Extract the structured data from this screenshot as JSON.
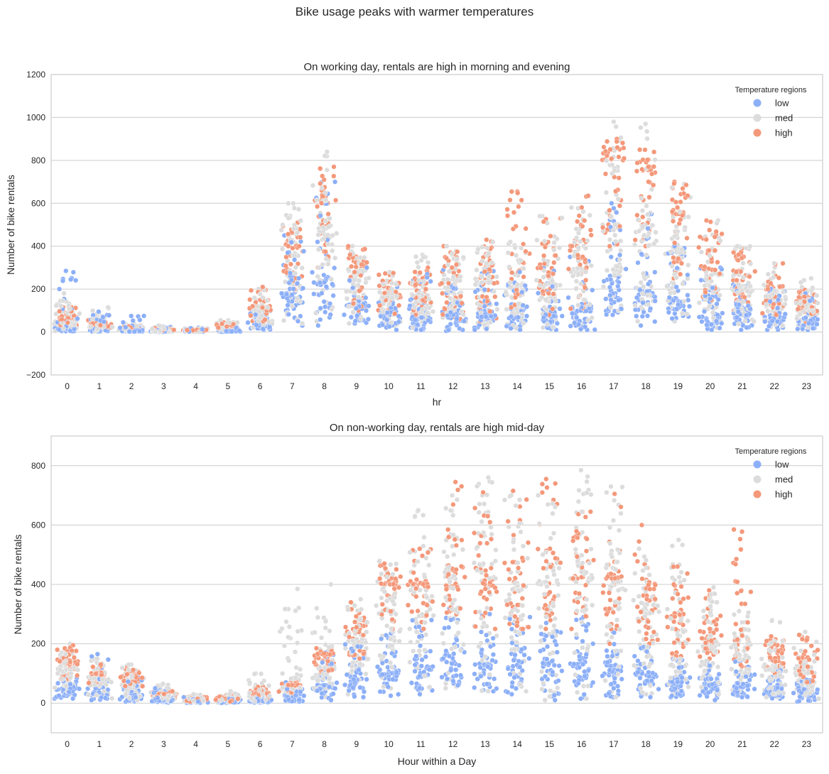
{
  "figure": {
    "title": "Bike usage peaks with warmer temperatures"
  },
  "colors": {
    "low": "#8caff8",
    "med": "#dcdcdc",
    "high": "#f4987a",
    "grid": "#cccccc",
    "frame": "#cccccc"
  },
  "chart_data": [
    {
      "type": "scatter",
      "subtype": "swarm",
      "title": "On working day, rentals are high in morning and evening",
      "xlabel": "hr",
      "ylabel": "Number of bike rentals",
      "ylim": [
        -200,
        1200
      ],
      "yticks": [
        -200,
        0,
        200,
        400,
        600,
        800,
        1000,
        1200
      ],
      "categories": [
        "0",
        "1",
        "2",
        "3",
        "4",
        "5",
        "6",
        "7",
        "8",
        "9",
        "10",
        "11",
        "12",
        "13",
        "14",
        "15",
        "16",
        "17",
        "18",
        "19",
        "20",
        "21",
        "22",
        "23"
      ],
      "legend": {
        "title": "Temperature regions",
        "entries": [
          "low",
          "med",
          "high"
        ],
        "placement": "top-right"
      },
      "grid": "horizontal",
      "series": [
        {
          "name": "low",
          "min": [
            3,
            2,
            2,
            1,
            1,
            1,
            10,
            30,
            30,
            40,
            10,
            10,
            5,
            10,
            10,
            10,
            10,
            80,
            30,
            50,
            10,
            10,
            10,
            10
          ],
          "median": [
            15,
            8,
            4,
            3,
            3,
            5,
            40,
            180,
            230,
            120,
            80,
            70,
            80,
            80,
            80,
            80,
            110,
            230,
            190,
            140,
            80,
            70,
            60,
            50
          ],
          "max": [
            285,
            95,
            75,
            25,
            20,
            30,
            110,
            450,
            700,
            300,
            220,
            270,
            290,
            290,
            280,
            300,
            350,
            600,
            550,
            400,
            300,
            220,
            200,
            180
          ]
        },
        {
          "name": "med",
          "min": [
            5,
            3,
            2,
            1,
            1,
            2,
            20,
            40,
            50,
            40,
            20,
            20,
            20,
            20,
            10,
            20,
            20,
            100,
            50,
            50,
            20,
            20,
            20,
            20
          ],
          "median": [
            45,
            25,
            12,
            5,
            4,
            15,
            100,
            350,
            450,
            240,
            160,
            170,
            240,
            230,
            210,
            210,
            280,
            500,
            460,
            370,
            260,
            200,
            150,
            100
          ],
          "max": [
            180,
            115,
            40,
            30,
            20,
            55,
            200,
            600,
            840,
            400,
            280,
            360,
            400,
            420,
            420,
            540,
            580,
            980,
            970,
            690,
            520,
            400,
            320,
            250
          ]
        },
        {
          "name": "high",
          "min": [
            30,
            20,
            10,
            5,
            5,
            10,
            50,
            200,
            300,
            100,
            80,
            80,
            60,
            50,
            80,
            80,
            100,
            400,
            400,
            250,
            150,
            100,
            80,
            40
          ],
          "median": [
            60,
            35,
            20,
            10,
            8,
            25,
            120,
            400,
            600,
            300,
            190,
            220,
            300,
            280,
            280,
            280,
            400,
            800,
            750,
            550,
            380,
            280,
            200,
            120
          ],
          "max": [
            115,
            55,
            30,
            20,
            15,
            45,
            210,
            510,
            770,
            400,
            275,
            300,
            400,
            430,
            655,
            530,
            635,
            900,
            850,
            700,
            520,
            390,
            320,
            200
          ]
        }
      ]
    },
    {
      "type": "scatter",
      "subtype": "swarm",
      "title": "On non-working day, rentals are high mid-day",
      "xlabel": "Hour within a Day",
      "ylabel": "Number of bike rentals",
      "ylim": [
        -100,
        900
      ],
      "yticks": [
        0,
        200,
        400,
        600,
        800
      ],
      "categories": [
        "0",
        "1",
        "2",
        "3",
        "4",
        "5",
        "6",
        "7",
        "8",
        "9",
        "10",
        "11",
        "12",
        "13",
        "14",
        "15",
        "16",
        "17",
        "18",
        "19",
        "20",
        "21",
        "22",
        "23"
      ],
      "legend": {
        "title": "Temperature regions",
        "entries": [
          "low",
          "med",
          "high"
        ],
        "placement": "top-right"
      },
      "grid": "horizontal",
      "series": [
        {
          "name": "low",
          "min": [
            15,
            10,
            5,
            2,
            1,
            1,
            2,
            5,
            10,
            20,
            25,
            30,
            60,
            40,
            30,
            10,
            15,
            20,
            20,
            20,
            10,
            20,
            15,
            5
          ],
          "median": [
            40,
            35,
            25,
            10,
            5,
            5,
            10,
            25,
            60,
            80,
            100,
            120,
            150,
            130,
            120,
            120,
            130,
            110,
            90,
            70,
            60,
            60,
            50,
            35
          ],
          "max": [
            90,
            165,
            85,
            50,
            20,
            15,
            30,
            70,
            170,
            200,
            240,
            280,
            320,
            300,
            290,
            270,
            290,
            240,
            190,
            150,
            140,
            140,
            110,
            80
          ]
        },
        {
          "name": "med",
          "min": [
            30,
            15,
            10,
            5,
            3,
            2,
            5,
            20,
            20,
            30,
            50,
            40,
            50,
            40,
            40,
            10,
            15,
            20,
            30,
            30,
            30,
            30,
            20,
            15
          ],
          "median": [
            100,
            80,
            60,
            25,
            10,
            10,
            20,
            60,
            120,
            200,
            300,
            380,
            420,
            420,
            380,
            400,
            420,
            380,
            300,
            240,
            190,
            160,
            120,
            100
          ],
          "max": [
            200,
            150,
            130,
            65,
            30,
            40,
            100,
            385,
            400,
            350,
            480,
            650,
            700,
            760,
            700,
            700,
            785,
            730,
            520,
            550,
            390,
            310,
            280,
            240
          ]
        },
        {
          "name": "high",
          "min": [
            80,
            60,
            40,
            10,
            5,
            5,
            20,
            30,
            100,
            150,
            250,
            250,
            300,
            250,
            250,
            250,
            250,
            200,
            200,
            150,
            150,
            120,
            100,
            60
          ],
          "median": [
            140,
            100,
            90,
            30,
            12,
            15,
            35,
            60,
            160,
            240,
            400,
            400,
            450,
            450,
            430,
            400,
            420,
            420,
            350,
            300,
            240,
            220,
            180,
            150
          ],
          "max": [
            195,
            130,
            120,
            40,
            20,
            25,
            55,
            70,
            185,
            340,
            470,
            520,
            745,
            710,
            715,
            755,
            645,
            705,
            600,
            460,
            380,
            585,
            225,
            230
          ]
        }
      ]
    }
  ]
}
